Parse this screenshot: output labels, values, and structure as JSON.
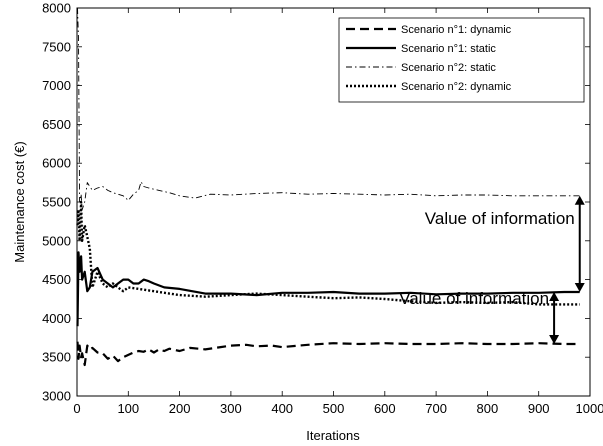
{
  "chart_data": {
    "type": "line",
    "xlabel": "Iterations",
    "ylabel": "Maintenance cost (€)",
    "xlim": [
      0,
      1000
    ],
    "ylim": [
      3000,
      8000
    ],
    "xticks": [
      0,
      100,
      200,
      300,
      400,
      500,
      600,
      700,
      800,
      900,
      1000
    ],
    "yticks": [
      3000,
      3500,
      4000,
      4500,
      5000,
      5500,
      6000,
      6500,
      7000,
      7500,
      8000
    ],
    "grid": false,
    "legend_position": "top-right",
    "series": [
      {
        "name": "Scenario n°1: dynamic",
        "style": "dashed",
        "x": [
          1,
          3,
          5,
          8,
          10,
          15,
          20,
          25,
          30,
          40,
          50,
          60,
          70,
          80,
          90,
          100,
          110,
          120,
          130,
          140,
          150,
          160,
          170,
          180,
          200,
          220,
          250,
          280,
          300,
          330,
          350,
          380,
          400,
          450,
          500,
          550,
          600,
          650,
          700,
          750,
          800,
          850,
          900,
          950,
          980
        ],
        "y": [
          3700,
          3480,
          3650,
          3500,
          3550,
          3400,
          3650,
          3600,
          3620,
          3560,
          3550,
          3480,
          3520,
          3450,
          3500,
          3530,
          3560,
          3580,
          3570,
          3600,
          3560,
          3600,
          3580,
          3610,
          3580,
          3620,
          3600,
          3630,
          3650,
          3660,
          3640,
          3650,
          3630,
          3660,
          3680,
          3670,
          3680,
          3670,
          3670,
          3680,
          3670,
          3670,
          3680,
          3670,
          3670
        ]
      },
      {
        "name": "Scenario n°1: static",
        "style": "solid",
        "x": [
          1,
          3,
          5,
          8,
          10,
          15,
          20,
          25,
          30,
          40,
          50,
          60,
          70,
          80,
          90,
          100,
          110,
          120,
          130,
          140,
          150,
          170,
          200,
          250,
          300,
          350,
          400,
          450,
          500,
          550,
          600,
          650,
          700,
          750,
          800,
          850,
          900,
          950,
          980
        ],
        "y": [
          3900,
          4850,
          4600,
          4800,
          4500,
          4600,
          4350,
          4400,
          4600,
          4650,
          4500,
          4450,
          4400,
          4450,
          4500,
          4500,
          4450,
          4450,
          4500,
          4480,
          4450,
          4400,
          4380,
          4320,
          4320,
          4300,
          4330,
          4330,
          4340,
          4320,
          4320,
          4330,
          4310,
          4320,
          4320,
          4330,
          4330,
          4340,
          4340
        ]
      },
      {
        "name": "Scenario n°2: static",
        "style": "dashdot",
        "x": [
          1,
          3,
          5,
          8,
          10,
          15,
          20,
          25,
          30,
          40,
          50,
          60,
          70,
          80,
          90,
          100,
          110,
          120,
          125,
          130,
          140,
          160,
          180,
          200,
          230,
          260,
          300,
          350,
          400,
          450,
          500,
          550,
          600,
          650,
          700,
          750,
          800,
          850,
          900,
          950,
          980
        ],
        "y": [
          8000,
          7600,
          5500,
          5600,
          5400,
          5500,
          5750,
          5700,
          5650,
          5680,
          5700,
          5650,
          5620,
          5600,
          5580,
          5520,
          5600,
          5650,
          5760,
          5700,
          5680,
          5650,
          5620,
          5580,
          5550,
          5600,
          5590,
          5610,
          5620,
          5600,
          5610,
          5600,
          5590,
          5600,
          5580,
          5590,
          5590,
          5580,
          5580,
          5580,
          5580
        ]
      },
      {
        "name": "Scenario n°2: dynamic",
        "style": "dotted",
        "x": [
          1,
          3,
          5,
          8,
          10,
          15,
          20,
          25,
          30,
          40,
          50,
          60,
          70,
          80,
          90,
          100,
          120,
          150,
          200,
          250,
          300,
          350,
          400,
          450,
          500,
          550,
          600,
          650,
          700,
          750,
          800,
          850,
          900,
          950,
          980
        ],
        "y": [
          5200,
          5400,
          5000,
          5500,
          5000,
          5200,
          5050,
          4900,
          4400,
          4600,
          4450,
          4400,
          4450,
          4400,
          4350,
          4400,
          4380,
          4350,
          4300,
          4280,
          4300,
          4320,
          4300,
          4280,
          4260,
          4270,
          4250,
          4220,
          4200,
          4210,
          4200,
          4210,
          4180,
          4180,
          4180
        ]
      }
    ],
    "annotations": [
      {
        "text": "Value of information",
        "arrow_x": 980,
        "from": 4340,
        "to": 5580
      },
      {
        "text": "Value of information",
        "arrow_x": 930,
        "from": 3670,
        "to": 4340
      }
    ]
  }
}
